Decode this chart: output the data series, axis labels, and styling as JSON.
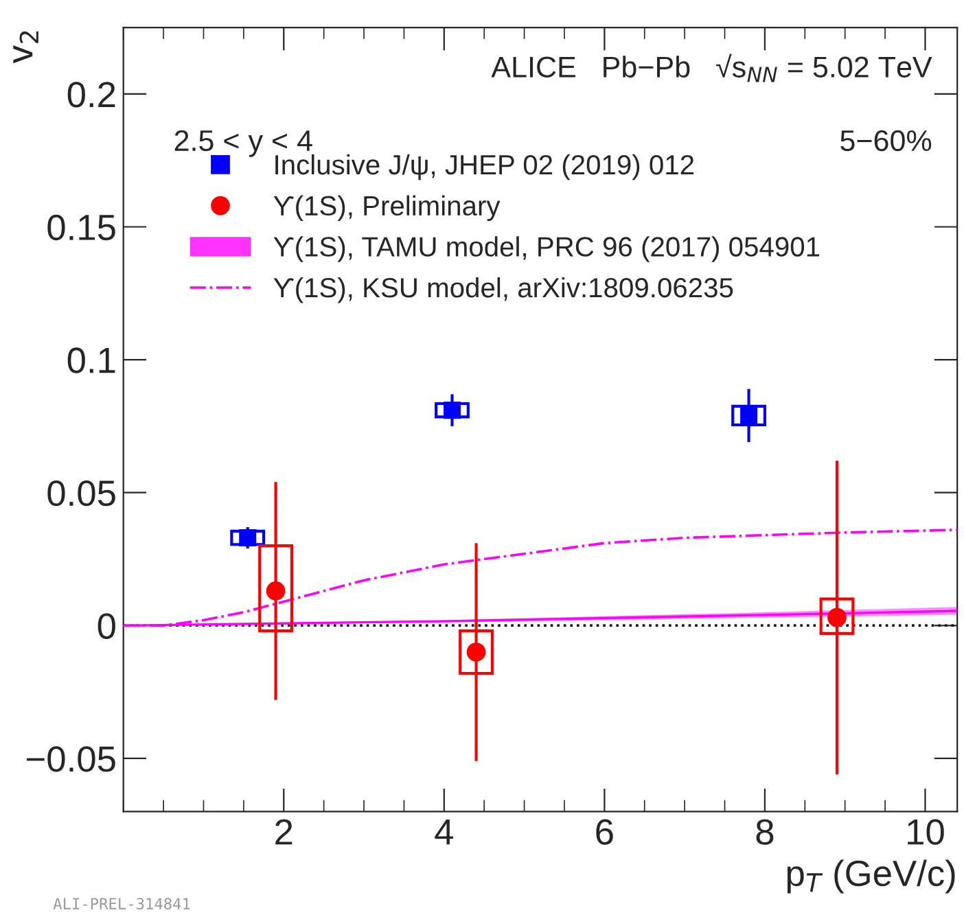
{
  "chart_data": {
    "type": "scatter",
    "xlabel": "p$_{T}$ (GeV/c)",
    "ylabel": "v$_{2}$",
    "xlim": [
      0,
      10.4
    ],
    "ylim": [
      -0.07,
      0.225
    ],
    "xticks": [
      2,
      4,
      6,
      8,
      10
    ],
    "yticks": [
      -0.05,
      0,
      0.05,
      0.1,
      0.15,
      0.2
    ],
    "grid": false,
    "legend": "top",
    "series": [
      {
        "name": "Inclusive J/ψ, JHEP 02 (2019) 012",
        "marker": "square",
        "color": "#0000ff",
        "x": [
          1.55,
          4.1,
          7.8
        ],
        "values": [
          0.033,
          0.081,
          0.079
        ],
        "errors": [
          0.004,
          0.006,
          0.01
        ]
      },
      {
        "type": "bar",
        "color": "#0000ff",
        "x": [
          1.55,
          4.1,
          7.8
        ],
        "base": [
          0.0305,
          0.0785,
          0.0755
        ],
        "values": [
          0.005,
          0.005,
          0.007
        ]
      },
      {
        "name": "ϒ(1S), Preliminary",
        "marker": "circle",
        "color": "#ff0000",
        "x": [
          1.9,
          4.4,
          8.9
        ],
        "values": [
          0.013,
          -0.01,
          0.003
        ],
        "errors": [
          0.041,
          0.041,
          0.059
        ]
      },
      {
        "type": "bar",
        "color": "#ff0000",
        "x": [
          1.9,
          4.4,
          8.9
        ],
        "base": [
          -0.002,
          -0.018,
          -0.003
        ],
        "values": [
          0.032,
          0.016,
          0.013
        ]
      },
      {
        "name": "ϒ(1S), TAMU model, PRC 96 (2017) 054901",
        "type": "line",
        "color": "#ff00ff",
        "x": [
          0,
          2,
          4,
          6,
          8,
          10.4
        ],
        "values": [
          0,
          0.0008,
          0.0016,
          0.0028,
          0.004,
          0.0055
        ],
        "lower": [
          0,
          0.0005,
          0.0012,
          0.002,
          0.003,
          0.004
        ],
        "upper": [
          0,
          0.001,
          0.002,
          0.0035,
          0.005,
          0.007
        ]
      },
      {
        "name": "ϒ(1S), KSU model, arXiv:1809.06235",
        "type": "line",
        "line_style": "dashdot",
        "color": "#ff00ff",
        "x": [
          0,
          0.5,
          1,
          1.5,
          2,
          2.5,
          3,
          3.5,
          4,
          5,
          6,
          7,
          8,
          9,
          10.4
        ],
        "values": [
          0,
          0,
          0.002,
          0.005,
          0.009,
          0.013,
          0.017,
          0.02,
          0.023,
          0.027,
          0.031,
          0.033,
          0.034,
          0.035,
          0.036
        ]
      }
    ],
    "ref_lines": [
      {
        "axis": "y",
        "value": 0,
        "color": "#000000",
        "line_style": "dotted"
      }
    ],
    "annotations": [
      "ALICE   Pb−Pb   √s$_{NN}$ = 5.02 TeV",
      "2.5 < y < 4",
      "5−60%",
      "ALI-PREL-314841"
    ]
  }
}
